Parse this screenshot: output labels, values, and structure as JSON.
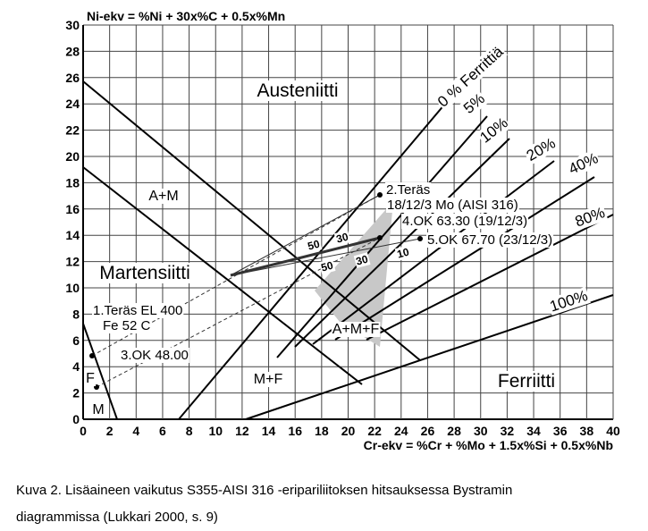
{
  "axes": {
    "y_label": "Ni-ekv = %Ni + 30x%C + 0.5x%Mn",
    "x_label": "Cr-ekv = %Cr + %Mo + 1.5x%Si + 0.5x%Nb",
    "xticks": [
      0,
      2,
      4,
      6,
      8,
      10,
      12,
      14,
      16,
      18,
      20,
      22,
      24,
      26,
      28,
      30,
      32,
      34,
      36,
      38,
      40
    ],
    "yticks": [
      0,
      2,
      4,
      6,
      8,
      10,
      12,
      14,
      16,
      18,
      20,
      22,
      24,
      26,
      28,
      30
    ]
  },
  "regions": [
    "Austeniitti",
    "A+M",
    "Martensiitti",
    "A+M+F",
    "M+F",
    "Ferriitti",
    "F",
    "M"
  ],
  "ferrite_lines": [
    "0 % Ferrittiä",
    "5%",
    "10%",
    "20%",
    "40%",
    "80%",
    "100%"
  ],
  "points": [
    "2.Teräs",
    "18/12/3 Mo (AISI 316)",
    "4.OK 63.30 (19/12/3)",
    "5.OK 67.70 (23/12/3)",
    "1.Teräs EL 400",
    "Fe 52 C",
    "3.OK 48.00"
  ],
  "mix_labels": [
    "50",
    "30",
    "50",
    "30",
    "10"
  ],
  "caption": {
    "line1": "Kuva 2. Lisäaineen vaikutus S355-AISI 316 -eripariliitoksen hitsauksessa Bystramin",
    "line2": "diagrammissa (Lukkari 2000, s. 9)"
  }
}
